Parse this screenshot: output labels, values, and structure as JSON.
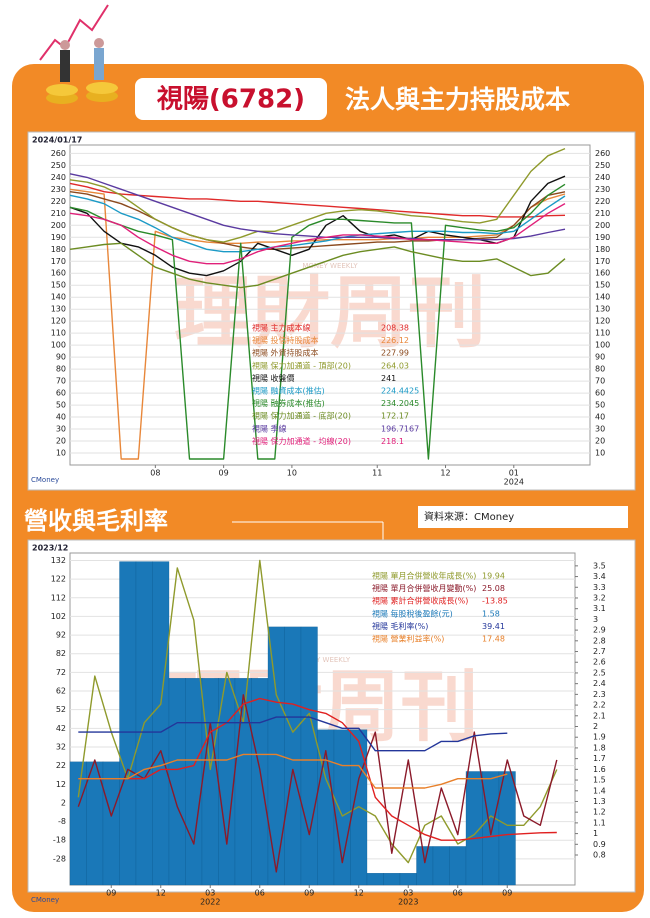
{
  "page": {
    "stock": "視陽(6782)",
    "headline": "法人與主力持股成本",
    "section": "營收與毛利率",
    "source": "資料來源：CMoney"
  },
  "chart_data": [
    {
      "type": "line",
      "date": "2024/01/17",
      "brand": "CMoney",
      "watermark": "理財周刊",
      "watermark_sub": "MONEY WEEKLY",
      "categories": [
        null,
        null,
        null,
        null,
        null,
        "08",
        null,
        null,
        null,
        "09",
        null,
        null,
        null,
        "10",
        null,
        null,
        null,
        null,
        "11",
        null,
        null,
        null,
        "12",
        null,
        null,
        null,
        "01",
        null,
        null,
        null
      ],
      "years": [
        null,
        null,
        null,
        null,
        null,
        null,
        null,
        null,
        null,
        null,
        null,
        null,
        null,
        null,
        null,
        null,
        null,
        null,
        null,
        null,
        null,
        null,
        null,
        null,
        null,
        null,
        "2024",
        null,
        null,
        null
      ],
      "ylim": [
        0,
        267
      ],
      "yticks": [
        10,
        20,
        30,
        40,
        50,
        60,
        70,
        80,
        90,
        100,
        110,
        120,
        130,
        140,
        150,
        160,
        170,
        180,
        190,
        200,
        210,
        220,
        230,
        240,
        250,
        260
      ],
      "grid": true,
      "series": [
        {
          "name": "視陽 主力成本線",
          "latest": 208.38,
          "color": "#e02a2a",
          "values": [
            235,
            232,
            228,
            226,
            225,
            224,
            223,
            222,
            222,
            221,
            220,
            220,
            219,
            218,
            217,
            216,
            215,
            214,
            213,
            212,
            211,
            210,
            209,
            208,
            208,
            207,
            207,
            207,
            208,
            208.38
          ]
        },
        {
          "name": "視陽 投信持股成本",
          "latest": 226.12,
          "color": "#e8873a",
          "values": [
            230,
            228,
            226,
            5,
            5,
            195,
            190,
            188,
            186,
            185,
            185,
            186,
            186,
            187,
            187,
            188,
            188,
            188,
            188,
            189,
            189,
            190,
            190,
            190,
            191,
            192,
            200,
            215,
            222,
            226.12
          ]
        },
        {
          "name": "視陽 外資持股成本",
          "latest": 227.99,
          "color": "#8b4a1e",
          "values": [
            228,
            226,
            222,
            218,
            212,
            205,
            198,
            192,
            188,
            185,
            182,
            180,
            180,
            181,
            182,
            183,
            184,
            185,
            186,
            186,
            187,
            187,
            188,
            188,
            189,
            190,
            200,
            215,
            225,
            227.99
          ]
        },
        {
          "name": "視陽 保力加通道 - 頂部(20)",
          "latest": 264.03,
          "color": "#8f9a2c",
          "values": [
            238,
            236,
            232,
            225,
            215,
            205,
            198,
            192,
            188,
            186,
            190,
            195,
            195,
            200,
            205,
            210,
            212,
            213,
            212,
            210,
            208,
            207,
            205,
            203,
            202,
            205,
            225,
            245,
            258,
            264.03
          ]
        },
        {
          "name": "視陽 收盤價",
          "latest": 241,
          "color": "#111111",
          "values": [
            215,
            210,
            195,
            185,
            182,
            175,
            165,
            160,
            158,
            162,
            170,
            185,
            180,
            175,
            180,
            200,
            208,
            195,
            190,
            192,
            188,
            195,
            192,
            190,
            188,
            185,
            190,
            220,
            235,
            241
          ]
        },
        {
          "name": "視陽 融資成本(推估)",
          "latest": 224.4425,
          "color": "#1b9ac6",
          "values": [
            225,
            222,
            218,
            210,
            205,
            198,
            190,
            185,
            180,
            178,
            178,
            180,
            182,
            183,
            185,
            187,
            190,
            192,
            193,
            194,
            195,
            195,
            195,
            194,
            194,
            193,
            195,
            205,
            215,
            224.4425
          ]
        },
        {
          "name": "視陽 融券成本(推估)",
          "latest": 234.2045,
          "color": "#2a8a2a",
          "values": [
            215,
            212,
            205,
            200,
            195,
            192,
            188,
            5,
            5,
            5,
            185,
            5,
            5,
            190,
            200,
            205,
            205,
            204,
            203,
            202,
            202,
            5,
            200,
            198,
            196,
            195,
            198,
            210,
            225,
            234.2045
          ]
        },
        {
          "name": "視陽 保力加通道 - 底部(20)",
          "latest": 172.17,
          "color": "#6c8c22",
          "values": [
            180,
            182,
            184,
            185,
            175,
            165,
            160,
            155,
            152,
            150,
            148,
            150,
            155,
            160,
            165,
            170,
            175,
            178,
            180,
            182,
            178,
            175,
            172,
            170,
            170,
            172,
            165,
            158,
            160,
            172.17
          ]
        },
        {
          "name": "視陽 季線",
          "latest": 196.7167,
          "color": "#5a3aa0",
          "values": [
            243,
            240,
            235,
            230,
            225,
            220,
            215,
            210,
            205,
            200,
            197,
            195,
            193,
            192,
            191,
            190,
            190,
            190,
            190,
            189,
            189,
            188,
            188,
            188,
            188,
            188,
            189,
            191,
            194,
            196.7167
          ]
        },
        {
          "name": "視陽 保力加通道 - 均線(20)",
          "latest": 218.1,
          "color": "#e0207a",
          "values": [
            210,
            208,
            205,
            200,
            190,
            182,
            175,
            170,
            168,
            168,
            172,
            178,
            182,
            185,
            188,
            190,
            192,
            192,
            191,
            190,
            188,
            188,
            187,
            186,
            185,
            185,
            190,
            200,
            210,
            218.1
          ]
        }
      ]
    },
    {
      "type": "combo",
      "date": "2023/12",
      "brand": "CMoney",
      "watermark": "理財周刊",
      "watermark_sub": "MONEY WEEKLY",
      "categories": [
        null,
        null,
        "09",
        null,
        null,
        "12",
        null,
        null,
        "03",
        null,
        null,
        "06",
        null,
        null,
        "09",
        null,
        null,
        "12",
        null,
        null,
        "03",
        null,
        null,
        "06",
        null,
        null,
        "09",
        null,
        null,
        null
      ],
      "years": [
        null,
        null,
        null,
        null,
        null,
        null,
        null,
        null,
        "2022",
        null,
        null,
        null,
        null,
        null,
        null,
        null,
        null,
        null,
        null,
        null,
        "2023",
        null,
        null,
        null,
        null,
        null,
        null,
        null,
        null,
        null
      ],
      "ylim": [
        -42,
        136
      ],
      "yticks": [
        132,
        122,
        112,
        102,
        92,
        82,
        72,
        62,
        52,
        42,
        32,
        22,
        12,
        2,
        -8,
        -18,
        -28
      ],
      "y2lim": [
        0.52,
        3.62
      ],
      "y2ticks": [
        3.5,
        3.4,
        3.3,
        3.2,
        3.1,
        3,
        2.9,
        2.8,
        2.7,
        2.6,
        2.5,
        2.4,
        2.3,
        2.2,
        2.1,
        2,
        1.9,
        1.8,
        1.7,
        1.6,
        1.5,
        1.4,
        1.3,
        1.2,
        1.1,
        1,
        0.9,
        0.8
      ],
      "grid": true,
      "series": [
        {
          "name": "視陽 單月合併營收年成長(%)",
          "latest": 19.94,
          "color": "#8f9a2c",
          "type": "line",
          "values": [
            5,
            70,
            40,
            15,
            45,
            55,
            128,
            100,
            20,
            72,
            45,
            132,
            60,
            40,
            50,
            15,
            -5,
            0,
            -5,
            -20,
            -30,
            -10,
            -5,
            -20,
            -15,
            -5,
            -10,
            -10,
            0,
            19.94
          ]
        },
        {
          "name": "視陽 單月合併營收月變動(%)",
          "latest": 25.08,
          "color": "#8b1a2a",
          "type": "line",
          "values": [
            0,
            25,
            -5,
            20,
            15,
            30,
            0,
            -20,
            45,
            -20,
            60,
            20,
            -35,
            20,
            -15,
            30,
            -30,
            15,
            40,
            -25,
            25,
            -30,
            10,
            -15,
            40,
            -15,
            25,
            -5,
            -10,
            25.08
          ]
        },
        {
          "name": "視陽 累計合併營收成長(%)",
          "latest": -13.85,
          "color": "#e02020",
          "type": "line",
          "values": [
            15,
            15,
            15,
            15,
            15,
            20,
            20,
            22,
            40,
            45,
            55,
            58,
            56,
            55,
            52,
            50,
            45,
            35,
            5,
            -5,
            -10,
            -15,
            -18,
            -18,
            -17,
            -16,
            -15,
            -14.5,
            -14,
            -13.85
          ]
        },
        {
          "name": "視陽 每股稅後盈餘(元)",
          "latest": 1.58,
          "color": "#1a78b8",
          "type": "bar",
          "axis": "y2",
          "values": [
            1.67,
            1.67,
            1.67,
            3.54,
            3.54,
            3.54,
            2.45,
            2.45,
            2.45,
            2.45,
            2.45,
            2.45,
            2.93,
            2.93,
            2.93,
            1.97,
            1.97,
            1.97,
            0.63,
            0.63,
            0.63,
            0.88,
            0.88,
            0.88,
            1.58,
            1.58,
            1.58,
            null,
            null,
            null
          ]
        },
        {
          "name": "視陽 毛利率(%)",
          "latest": 39.41,
          "color": "#23369a",
          "type": "line",
          "values": [
            40,
            40,
            40,
            40,
            40,
            40,
            45,
            45,
            45,
            45,
            45,
            45,
            48,
            48,
            48,
            45,
            42,
            42,
            30,
            30,
            30,
            30,
            35,
            35,
            38,
            39,
            39.41,
            null,
            null,
            null
          ]
        },
        {
          "name": "視陽 營業利益率(%)",
          "latest": 17.48,
          "color": "#e8802a",
          "type": "line",
          "values": [
            15,
            15,
            15,
            15,
            20,
            22,
            25,
            25,
            25,
            25,
            28,
            28,
            28,
            25,
            25,
            25,
            22,
            22,
            10,
            10,
            10,
            10,
            12,
            15,
            15,
            15,
            17.48,
            null,
            null,
            null
          ]
        }
      ]
    }
  ]
}
